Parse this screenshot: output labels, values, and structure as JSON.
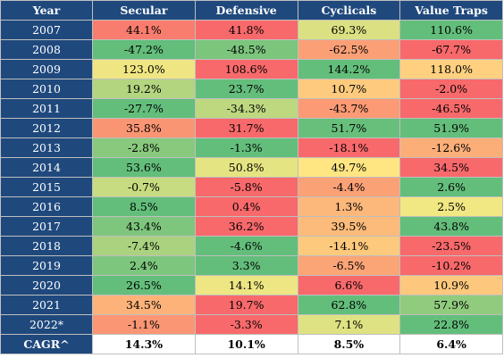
{
  "colors": {
    "header": "#1f497d",
    "scale_low": "#f8696b",
    "scale_mid": "#ffeb84",
    "scale_high": "#63be7b"
  },
  "chart_data": {
    "type": "table",
    "columns": [
      "Year",
      "Secular",
      "Defensive",
      "Cyclicals",
      "Value Traps"
    ],
    "rows": [
      {
        "label": "2007",
        "cells": [
          "44.1%",
          "41.8%",
          "69.3%",
          "110.6%"
        ],
        "values": [
          44.1,
          41.8,
          69.3,
          110.6
        ]
      },
      {
        "label": "2008",
        "cells": [
          "-47.2%",
          "-48.5%",
          "-62.5%",
          "-67.7%"
        ],
        "values": [
          -47.2,
          -48.5,
          -62.5,
          -67.7
        ]
      },
      {
        "label": "2009",
        "cells": [
          "123.0%",
          "108.6%",
          "144.2%",
          "118.0%"
        ],
        "values": [
          123.0,
          108.6,
          144.2,
          118.0
        ]
      },
      {
        "label": "2010",
        "cells": [
          "19.2%",
          "23.7%",
          "10.7%",
          "-2.0%"
        ],
        "values": [
          19.2,
          23.7,
          10.7,
          -2.0
        ]
      },
      {
        "label": "2011",
        "cells": [
          "-27.7%",
          "-34.3%",
          "-43.7%",
          "-46.5%"
        ],
        "values": [
          -27.7,
          -34.3,
          -43.7,
          -46.5
        ]
      },
      {
        "label": "2012",
        "cells": [
          "35.8%",
          "31.7%",
          "51.7%",
          "51.9%"
        ],
        "values": [
          35.8,
          31.7,
          51.7,
          51.9
        ]
      },
      {
        "label": "2013",
        "cells": [
          "-2.8%",
          "-1.3%",
          "-18.1%",
          "-12.6%"
        ],
        "values": [
          -2.8,
          -1.3,
          -18.1,
          -12.6
        ]
      },
      {
        "label": "2014",
        "cells": [
          "53.6%",
          "50.8%",
          "49.7%",
          "34.5%"
        ],
        "values": [
          53.6,
          50.8,
          49.7,
          34.5
        ]
      },
      {
        "label": "2015",
        "cells": [
          "-0.7%",
          "-5.8%",
          "-4.4%",
          "2.6%"
        ],
        "values": [
          -0.7,
          -5.8,
          -4.4,
          2.6
        ]
      },
      {
        "label": "2016",
        "cells": [
          "8.5%",
          "0.4%",
          "1.3%",
          "2.5%"
        ],
        "values": [
          8.5,
          0.4,
          1.3,
          2.5
        ]
      },
      {
        "label": "2017",
        "cells": [
          "43.4%",
          "36.2%",
          "39.5%",
          "43.8%"
        ],
        "values": [
          43.4,
          36.2,
          39.5,
          43.8
        ]
      },
      {
        "label": "2018",
        "cells": [
          "-7.4%",
          "-4.6%",
          "-14.1%",
          "-23.5%"
        ],
        "values": [
          -7.4,
          -4.6,
          -14.1,
          -23.5
        ]
      },
      {
        "label": "2019",
        "cells": [
          "2.4%",
          "3.3%",
          "-6.5%",
          "-10.2%"
        ],
        "values": [
          2.4,
          3.3,
          -6.5,
          -10.2
        ]
      },
      {
        "label": "2020",
        "cells": [
          "26.5%",
          "14.1%",
          "6.6%",
          "10.9%"
        ],
        "values": [
          26.5,
          14.1,
          6.6,
          10.9
        ]
      },
      {
        "label": "2021",
        "cells": [
          "34.5%",
          "19.7%",
          "62.8%",
          "57.9%"
        ],
        "values": [
          34.5,
          19.7,
          62.8,
          57.9
        ]
      },
      {
        "label": "2022*",
        "cells": [
          "-1.1%",
          "-3.3%",
          "7.1%",
          "22.8%"
        ],
        "values": [
          -1.1,
          -3.3,
          7.1,
          22.8
        ]
      }
    ],
    "footer": {
      "label": "CAGR^",
      "cells": [
        "14.3%",
        "10.1%",
        "8.5%",
        "6.4%"
      ],
      "values": [
        14.3,
        10.1,
        8.5,
        6.4
      ]
    }
  }
}
